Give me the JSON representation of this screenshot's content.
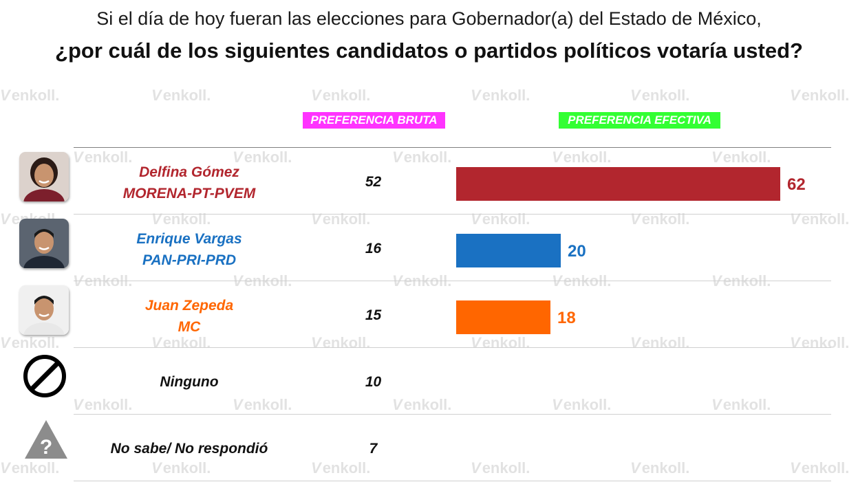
{
  "question": {
    "line1": "Si el día de hoy fueran las elecciones para Gobernador(a) del Estado de México,",
    "line2": "¿por cuál de los siguientes candidatos o partidos políticos votaría usted?"
  },
  "watermark": {
    "text": "enkoll."
  },
  "headers": {
    "bruta": "PREFERENCIA BRUTA",
    "efectiva": "PREFERENCIA EFECTIVA"
  },
  "colors": {
    "morena": "#b2262e",
    "pan": "#1a71c2",
    "mc": "#ff6600",
    "bruta_header": "#ff33ff",
    "efectiva_header": "#33ff33"
  },
  "chart_data": {
    "type": "bar",
    "categories": [
      "Delfina Gómez MORENA-PT-PVEM",
      "Enrique Vargas PAN-PRI-PRD",
      "Juan Zepeda MC",
      "Ninguno",
      "No sabe/ No respondió"
    ],
    "rows": [
      {
        "name": "Delfina Gómez",
        "party": "MORENA-PT-PVEM",
        "bruta": 52,
        "efectiva": 62,
        "color": "#b2262e",
        "icon": "candidate-photo"
      },
      {
        "name": "Enrique Vargas",
        "party": "PAN-PRI-PRD",
        "bruta": 16,
        "efectiva": 20,
        "color": "#1a71c2",
        "icon": "candidate-photo"
      },
      {
        "name": "Juan Zepeda",
        "party": "MC",
        "bruta": 15,
        "efectiva": 18,
        "color": "#ff6600",
        "icon": "candidate-photo"
      },
      {
        "name": "Ninguno",
        "party": "",
        "bruta": 10,
        "efectiva": null,
        "color": "#111111",
        "icon": "prohibited-icon"
      },
      {
        "name": "No sabe/ No respondió",
        "party": "",
        "bruta": 7,
        "efectiva": null,
        "color": "#111111",
        "icon": "question-warning-icon"
      }
    ],
    "series": [
      {
        "name": "PREFERENCIA BRUTA",
        "values": [
          52,
          16,
          15,
          10,
          7
        ]
      },
      {
        "name": "PREFERENCIA EFECTIVA",
        "values": [
          62,
          20,
          18,
          null,
          null
        ]
      }
    ],
    "title": "¿por cuál de los siguientes candidatos o partidos políticos votaría usted?",
    "xlabel": "",
    "ylabel": "",
    "xlim": [
      0,
      62
    ],
    "grid": false,
    "legend": "top"
  }
}
